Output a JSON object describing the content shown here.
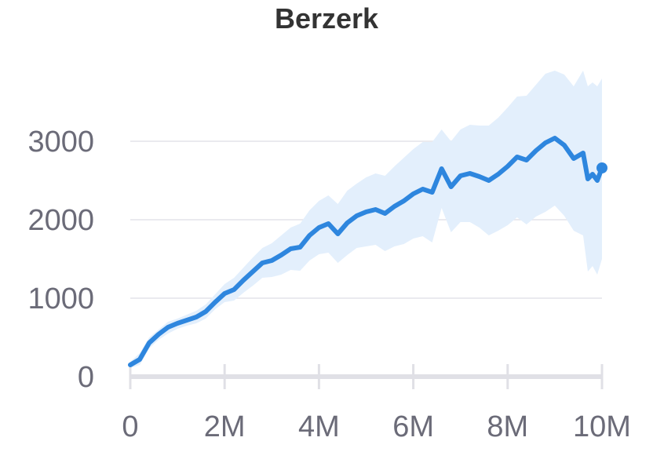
{
  "chart_data": {
    "type": "line",
    "title": "Berzerk",
    "xlabel": "",
    "ylabel": "",
    "xlim": [
      0,
      10000000
    ],
    "ylim": [
      0,
      4000
    ],
    "grid": true,
    "legend": "none",
    "x_ticks": [
      {
        "value": 0,
        "label": "0"
      },
      {
        "value": 2000000,
        "label": "2M"
      },
      {
        "value": 4000000,
        "label": "4M"
      },
      {
        "value": 6000000,
        "label": "6M"
      },
      {
        "value": 8000000,
        "label": "8M"
      },
      {
        "value": 10000000,
        "label": "10M"
      }
    ],
    "y_ticks": [
      {
        "value": 0,
        "label": "0"
      },
      {
        "value": 1000,
        "label": "1000"
      },
      {
        "value": 2000,
        "label": "2000"
      },
      {
        "value": 3000,
        "label": "3000"
      }
    ],
    "series": [
      {
        "color": "#2e86de",
        "band_color": "#e3effc",
        "points": [
          [
            0,
            150
          ],
          [
            200000,
            220
          ],
          [
            400000,
            430
          ],
          [
            600000,
            540
          ],
          [
            800000,
            630
          ],
          [
            1000000,
            680
          ],
          [
            1200000,
            720
          ],
          [
            1400000,
            760
          ],
          [
            1600000,
            830
          ],
          [
            1800000,
            950
          ],
          [
            2000000,
            1060
          ],
          [
            2200000,
            1110
          ],
          [
            2400000,
            1230
          ],
          [
            2600000,
            1340
          ],
          [
            2800000,
            1450
          ],
          [
            3000000,
            1480
          ],
          [
            3200000,
            1550
          ],
          [
            3400000,
            1630
          ],
          [
            3600000,
            1650
          ],
          [
            3800000,
            1800
          ],
          [
            4000000,
            1900
          ],
          [
            4200000,
            1950
          ],
          [
            4400000,
            1820
          ],
          [
            4600000,
            1960
          ],
          [
            4800000,
            2050
          ],
          [
            5000000,
            2100
          ],
          [
            5200000,
            2130
          ],
          [
            5400000,
            2080
          ],
          [
            5600000,
            2170
          ],
          [
            5800000,
            2240
          ],
          [
            6000000,
            2330
          ],
          [
            6200000,
            2390
          ],
          [
            6400000,
            2350
          ],
          [
            6600000,
            2650
          ],
          [
            6800000,
            2420
          ],
          [
            7000000,
            2560
          ],
          [
            7200000,
            2590
          ],
          [
            7400000,
            2550
          ],
          [
            7600000,
            2500
          ],
          [
            7800000,
            2580
          ],
          [
            8000000,
            2680
          ],
          [
            8200000,
            2800
          ],
          [
            8400000,
            2760
          ],
          [
            8600000,
            2880
          ],
          [
            8800000,
            2980
          ],
          [
            9000000,
            3040
          ],
          [
            9200000,
            2950
          ],
          [
            9400000,
            2780
          ],
          [
            9600000,
            2850
          ],
          [
            9700000,
            2520
          ],
          [
            9800000,
            2580
          ],
          [
            9900000,
            2500
          ],
          [
            10000000,
            2660
          ]
        ],
        "upper": [
          [
            0,
            190
          ],
          [
            200000,
            300
          ],
          [
            400000,
            500
          ],
          [
            600000,
            600
          ],
          [
            800000,
            700
          ],
          [
            1000000,
            740
          ],
          [
            1200000,
            790
          ],
          [
            1400000,
            840
          ],
          [
            1600000,
            920
          ],
          [
            1800000,
            1050
          ],
          [
            2000000,
            1180
          ],
          [
            2200000,
            1260
          ],
          [
            2400000,
            1390
          ],
          [
            2600000,
            1520
          ],
          [
            2800000,
            1640
          ],
          [
            3000000,
            1700
          ],
          [
            3200000,
            1800
          ],
          [
            3400000,
            1900
          ],
          [
            3600000,
            1950
          ],
          [
            3800000,
            2120
          ],
          [
            4000000,
            2240
          ],
          [
            4200000,
            2310
          ],
          [
            4400000,
            2200
          ],
          [
            4600000,
            2370
          ],
          [
            4800000,
            2460
          ],
          [
            5000000,
            2540
          ],
          [
            5200000,
            2590
          ],
          [
            5400000,
            2560
          ],
          [
            5600000,
            2680
          ],
          [
            5800000,
            2790
          ],
          [
            6000000,
            2900
          ],
          [
            6200000,
            2990
          ],
          [
            6400000,
            2990
          ],
          [
            6600000,
            3150
          ],
          [
            6800000,
            3000
          ],
          [
            7000000,
            3150
          ],
          [
            7200000,
            3210
          ],
          [
            7400000,
            3200
          ],
          [
            7600000,
            3200
          ],
          [
            7800000,
            3300
          ],
          [
            8000000,
            3430
          ],
          [
            8200000,
            3570
          ],
          [
            8400000,
            3580
          ],
          [
            8600000,
            3720
          ],
          [
            8800000,
            3860
          ],
          [
            9000000,
            3900
          ],
          [
            9200000,
            3850
          ],
          [
            9400000,
            3700
          ],
          [
            9600000,
            3900
          ],
          [
            9700000,
            3700
          ],
          [
            9800000,
            3750
          ],
          [
            9900000,
            3700
          ],
          [
            10000000,
            3800
          ]
        ],
        "lower": [
          [
            0,
            110
          ],
          [
            200000,
            150
          ],
          [
            400000,
            360
          ],
          [
            600000,
            470
          ],
          [
            800000,
            550
          ],
          [
            1000000,
            610
          ],
          [
            1200000,
            650
          ],
          [
            1400000,
            680
          ],
          [
            1600000,
            740
          ],
          [
            1800000,
            860
          ],
          [
            2000000,
            950
          ],
          [
            2200000,
            970
          ],
          [
            2400000,
            1070
          ],
          [
            2600000,
            1160
          ],
          [
            2800000,
            1260
          ],
          [
            3000000,
            1270
          ],
          [
            3200000,
            1300
          ],
          [
            3400000,
            1360
          ],
          [
            3600000,
            1350
          ],
          [
            3800000,
            1480
          ],
          [
            4000000,
            1560
          ],
          [
            4200000,
            1580
          ],
          [
            4400000,
            1450
          ],
          [
            4600000,
            1550
          ],
          [
            4800000,
            1640
          ],
          [
            5000000,
            1660
          ],
          [
            5200000,
            1680
          ],
          [
            5400000,
            1600
          ],
          [
            5600000,
            1660
          ],
          [
            5800000,
            1690
          ],
          [
            6000000,
            1760
          ],
          [
            6200000,
            1790
          ],
          [
            6400000,
            1710
          ],
          [
            6600000,
            2150
          ],
          [
            6800000,
            1840
          ],
          [
            7000000,
            1970
          ],
          [
            7200000,
            1970
          ],
          [
            7400000,
            1900
          ],
          [
            7600000,
            1800
          ],
          [
            7800000,
            1860
          ],
          [
            8000000,
            1930
          ],
          [
            8200000,
            2030
          ],
          [
            8400000,
            1940
          ],
          [
            8600000,
            2040
          ],
          [
            8800000,
            2100
          ],
          [
            9000000,
            2180
          ],
          [
            9200000,
            2050
          ],
          [
            9400000,
            1860
          ],
          [
            9600000,
            1800
          ],
          [
            9700000,
            1340
          ],
          [
            9800000,
            1410
          ],
          [
            9900000,
            1300
          ],
          [
            10000000,
            1500
          ]
        ]
      }
    ]
  }
}
